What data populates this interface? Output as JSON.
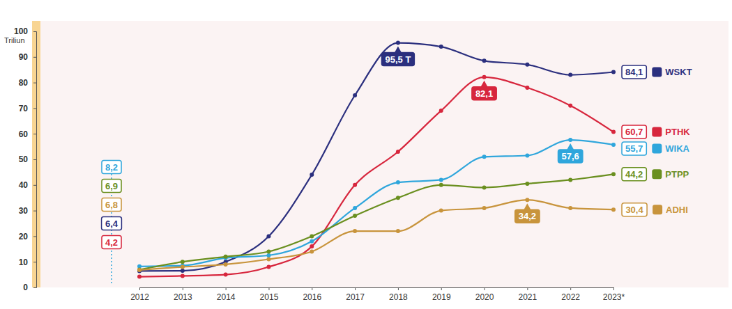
{
  "chart_data": {
    "type": "line",
    "y_label": "Triliun",
    "categories": [
      "2012",
      "2013",
      "2014",
      "2015",
      "2016",
      "2017",
      "2018",
      "2019",
      "2020",
      "2021",
      "2022",
      "2023*"
    ],
    "ylim": [
      0,
      100
    ],
    "yticks": [
      0,
      10,
      20,
      30,
      40,
      50,
      60,
      70,
      80,
      90,
      100
    ],
    "grid": false,
    "data_labels": true,
    "series": [
      {
        "name": "WSKT",
        "color": "#2b2f7e",
        "marker": "circle",
        "values": [
          6.4,
          6.5,
          10,
          20,
          44,
          75,
          95.5,
          94,
          88.5,
          87,
          83,
          84.1
        ],
        "value_labels": [
          "6,4",
          null,
          null,
          null,
          null,
          null,
          "95,5 T",
          null,
          null,
          null,
          null,
          "84,1"
        ]
      },
      {
        "name": "PTHK",
        "color": "#d7263d",
        "marker": "circle",
        "values": [
          4.2,
          4.5,
          5,
          8,
          16,
          40,
          53,
          69,
          82.1,
          78,
          71,
          60.7
        ],
        "value_labels": [
          "4,2",
          null,
          null,
          null,
          null,
          null,
          null,
          null,
          "82,1",
          null,
          null,
          "60,7"
        ]
      },
      {
        "name": "WIKA",
        "color": "#2fa6dc",
        "marker": "circle",
        "values": [
          8.2,
          8.5,
          11.5,
          12.5,
          18,
          31,
          41,
          42,
          51,
          51.5,
          57.6,
          55.7
        ],
        "value_labels": [
          "8,2",
          null,
          null,
          null,
          null,
          null,
          null,
          null,
          null,
          null,
          "57,6",
          "55,7"
        ]
      },
      {
        "name": "PTPP",
        "color": "#6a8f1f",
        "marker": "circle",
        "values": [
          6.9,
          10,
          12,
          14,
          20,
          28,
          35,
          40,
          39,
          40.5,
          42,
          44.2
        ],
        "value_labels": [
          "6,9",
          null,
          null,
          null,
          null,
          null,
          null,
          null,
          null,
          null,
          null,
          "44,2"
        ]
      },
      {
        "name": "ADHI",
        "color": "#c8943c",
        "marker": "circle",
        "values": [
          6.8,
          8,
          9,
          11,
          14,
          22,
          22,
          30,
          31,
          34.2,
          31,
          30.4
        ],
        "value_labels": [
          "6,8",
          null,
          null,
          null,
          null,
          null,
          null,
          null,
          null,
          "34,2",
          null,
          "30,4"
        ]
      }
    ]
  }
}
